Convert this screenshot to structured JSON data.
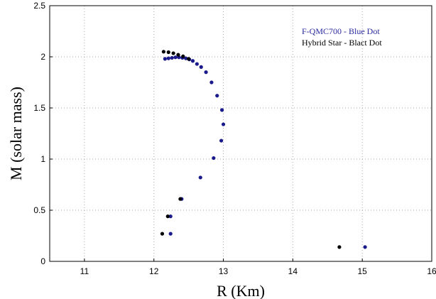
{
  "chart_data": {
    "type": "scatter",
    "title": "",
    "xlabel": "R (Km)",
    "ylabel": "M (solar mass)",
    "xlim": [
      10.5,
      16
    ],
    "ylim": [
      0,
      2.5
    ],
    "xticks": [
      "11",
      "12",
      "13",
      "14",
      "15",
      "16"
    ],
    "yticks": [
      "0",
      "0.5",
      "1",
      "1.5",
      "2",
      "2.5"
    ],
    "grid": true,
    "legend": {
      "placement": "top-right",
      "entries": [
        "F-QMC700 - Blue Dot",
        "Hybrid Star - Blact Dot"
      ]
    },
    "series": [
      {
        "name": "F-QMC700 - Blue Dot",
        "color": "#1a1a8c",
        "points": [
          [
            12.16,
            1.98
          ],
          [
            12.21,
            1.985
          ],
          [
            12.26,
            1.99
          ],
          [
            12.31,
            1.995
          ],
          [
            12.36,
            1.995
          ],
          [
            12.41,
            1.99
          ],
          [
            12.46,
            1.985
          ],
          [
            12.51,
            1.975
          ],
          [
            12.56,
            1.96
          ],
          [
            12.62,
            1.93
          ],
          [
            12.68,
            1.9
          ],
          [
            12.75,
            1.85
          ],
          [
            12.83,
            1.75
          ],
          [
            12.91,
            1.62
          ],
          [
            12.98,
            1.48
          ],
          [
            13.0,
            1.34
          ],
          [
            12.97,
            1.18
          ],
          [
            12.86,
            1.01
          ],
          [
            12.67,
            0.82
          ],
          [
            12.4,
            0.61
          ],
          [
            12.24,
            0.44
          ],
          [
            12.24,
            0.27
          ],
          [
            15.04,
            0.14
          ]
        ]
      },
      {
        "name": "Hybrid Star - Blact Dot",
        "color": "#000000",
        "points": [
          [
            12.14,
            2.05
          ],
          [
            12.21,
            2.045
          ],
          [
            12.28,
            2.035
          ],
          [
            12.35,
            2.02
          ],
          [
            12.42,
            2.005
          ],
          [
            12.5,
            1.98
          ],
          [
            12.38,
            0.61
          ],
          [
            12.2,
            0.44
          ],
          [
            12.12,
            0.27
          ],
          [
            14.67,
            0.14
          ]
        ]
      }
    ]
  }
}
